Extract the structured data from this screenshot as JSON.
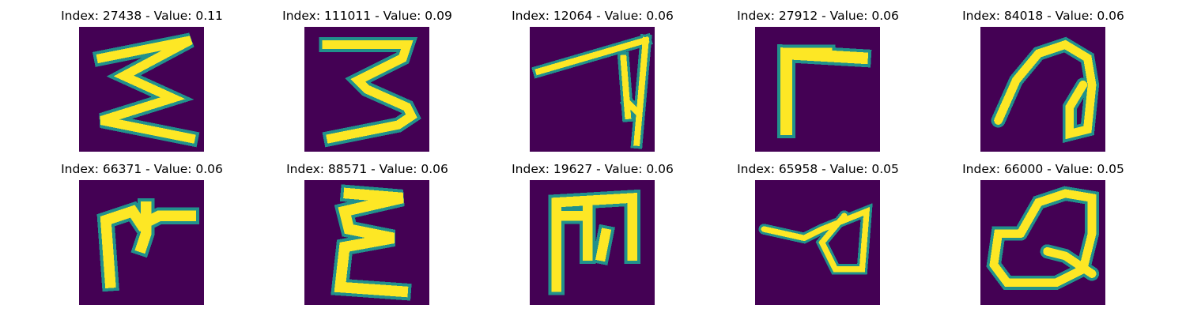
{
  "panels": [
    {
      "title": "Index: 27438 - Value: 0.11",
      "glyph": "stroke-shape"
    },
    {
      "title": "Index: 111011 - Value: 0.09",
      "glyph": "stroke-shape"
    },
    {
      "title": "Index: 12064 - Value: 0.06",
      "glyph": "stroke-shape"
    },
    {
      "title": "Index: 27912 - Value: 0.06",
      "glyph": "stroke-shape"
    },
    {
      "title": "Index: 84018 - Value: 0.06",
      "glyph": "stroke-shape"
    },
    {
      "title": "Index: 66371 - Value: 0.06",
      "glyph": "stroke-shape"
    },
    {
      "title": "Index: 88571 - Value: 0.06",
      "glyph": "stroke-shape"
    },
    {
      "title": "Index: 19627 - Value: 0.06",
      "glyph": "stroke-shape"
    },
    {
      "title": "Index: 65958 - Value: 0.05",
      "glyph": "stroke-shape"
    },
    {
      "title": "Index: 66000 - Value: 0.05",
      "glyph": "stroke-shape"
    }
  ],
  "colors": {
    "background": "#440154",
    "edge": "#21918c",
    "stroke": "#fde725"
  }
}
